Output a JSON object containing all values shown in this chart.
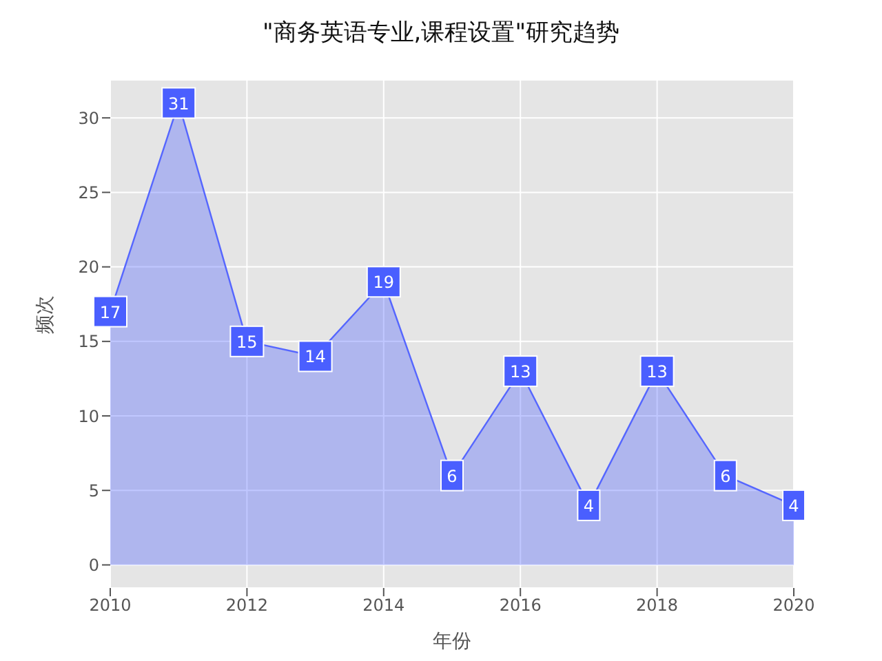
{
  "chart_data": {
    "type": "area",
    "title": "\"商务英语专业,课程设置\"研究趋势",
    "xlabel": "年份",
    "ylabel": "频次",
    "x": [
      2010,
      2011,
      2012,
      2013,
      2014,
      2015,
      2016,
      2017,
      2018,
      2019,
      2020
    ],
    "series": [
      {
        "color": "#5566ff",
        "values": [
          17,
          31,
          15,
          14,
          19,
          6,
          13,
          4,
          13,
          6,
          4
        ]
      }
    ],
    "xlim": [
      2010,
      2020
    ],
    "xticks": [
      2010,
      2012,
      2014,
      2016,
      2018,
      2020
    ],
    "ylim": [
      -1.55,
      32.55
    ],
    "yticks": [
      0,
      5,
      10,
      15,
      20,
      25,
      30
    ],
    "grid": true,
    "data_labels": true,
    "line_style": "solid"
  }
}
